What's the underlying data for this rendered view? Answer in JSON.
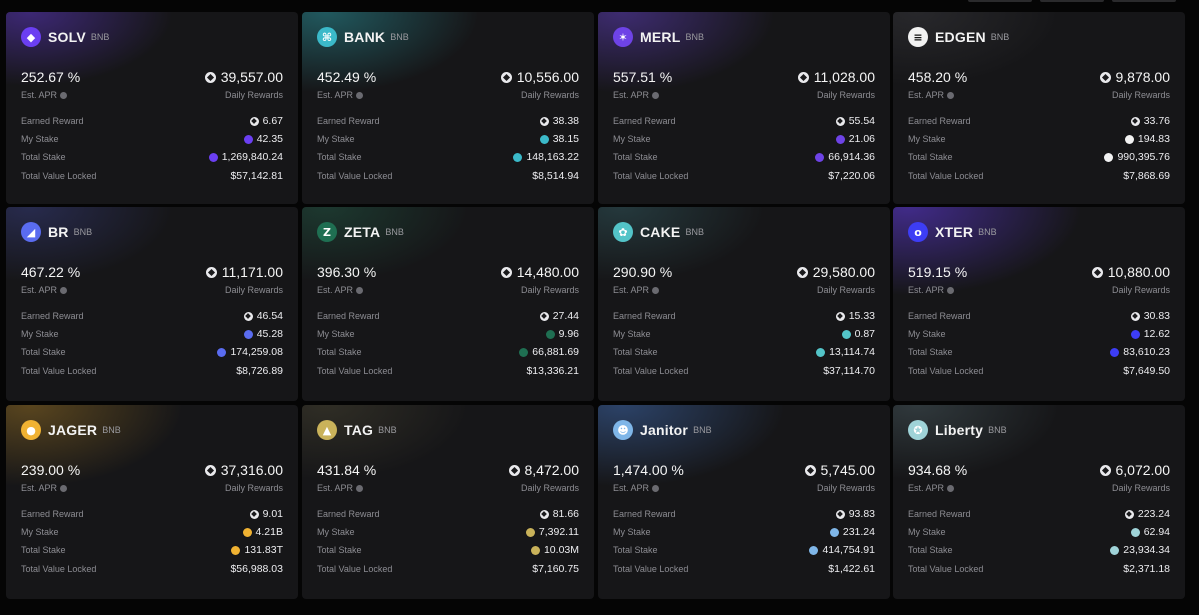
{
  "labels": {
    "est_apr": "Est. APR",
    "daily_rewards": "Daily Rewards",
    "earned_reward": "Earned Reward",
    "my_stake": "My Stake",
    "total_stake": "Total Stake",
    "tvl": "Total Value Locked"
  },
  "pools": [
    {
      "name": "SOLV",
      "chain": "BNB",
      "icon": "solv-logo-icon",
      "color": "#6b3ff2",
      "apr": "252.67 %",
      "daily": "39,557.00",
      "earned": "6.67",
      "my_stake": "42.35",
      "total_stake": "1,269,840.24",
      "tvl": "$57,142.81"
    },
    {
      "name": "BANK",
      "chain": "BNB",
      "icon": "bank-logo-icon",
      "color": "#3bb9c9",
      "apr": "452.49 %",
      "daily": "10,556.00",
      "earned": "38.38",
      "my_stake": "38.15",
      "total_stake": "148,163.22",
      "tvl": "$8,514.94"
    },
    {
      "name": "MERL",
      "chain": "BNB",
      "icon": "merl-logo-icon",
      "color": "#6e43e6",
      "apr": "557.51 %",
      "daily": "11,028.00",
      "earned": "55.54",
      "my_stake": "21.06",
      "total_stake": "66,914.36",
      "tvl": "$7,220.06"
    },
    {
      "name": "EDGEN",
      "chain": "BNB",
      "icon": "edgen-logo-icon",
      "color": "#f2f2f2",
      "apr": "458.20 %",
      "daily": "9,878.00",
      "earned": "33.76",
      "my_stake": "194.83",
      "total_stake": "990,395.76",
      "tvl": "$7,868.69"
    },
    {
      "name": "BR",
      "chain": "BNB",
      "icon": "br-logo-icon",
      "color": "#5a6cf0",
      "apr": "467.22 %",
      "daily": "11,171.00",
      "earned": "46.54",
      "my_stake": "45.28",
      "total_stake": "174,259.08",
      "tvl": "$8,726.89"
    },
    {
      "name": "ZETA",
      "chain": "BNB",
      "icon": "zeta-logo-icon",
      "color": "#1f6f52",
      "apr": "396.30 %",
      "daily": "14,480.00",
      "earned": "27.44",
      "my_stake": "9.96",
      "total_stake": "66,881.69",
      "tvl": "$13,336.21"
    },
    {
      "name": "CAKE",
      "chain": "BNB",
      "icon": "cake-logo-icon",
      "color": "#53c4c8",
      "apr": "290.90 %",
      "daily": "29,580.00",
      "earned": "15.33",
      "my_stake": "0.87",
      "total_stake": "13,114.74",
      "tvl": "$37,114.70"
    },
    {
      "name": "XTER",
      "chain": "BNB",
      "icon": "xter-logo-icon",
      "color": "#3d3df5",
      "apr": "519.15 %",
      "daily": "10,880.00",
      "earned": "30.83",
      "my_stake": "12.62",
      "total_stake": "83,610.23",
      "tvl": "$7,649.50"
    },
    {
      "name": "JAGER",
      "chain": "BNB",
      "icon": "jager-logo-icon",
      "color": "#f0b232",
      "apr": "239.00 %",
      "daily": "37,316.00",
      "earned": "9.01",
      "my_stake": "4.21B",
      "total_stake": "131.83T",
      "tvl": "$56,988.03"
    },
    {
      "name": "TAG",
      "chain": "BNB",
      "icon": "tag-logo-icon",
      "color": "#c9b25a",
      "apr": "431.84 %",
      "daily": "8,472.00",
      "earned": "81.66",
      "my_stake": "7,392.11",
      "total_stake": "10.03M",
      "tvl": "$7,160.75"
    },
    {
      "name": "Janitor",
      "chain": "BNB",
      "icon": "janitor-logo-icon",
      "color": "#7fb6e8",
      "apr": "1,474.00 %",
      "daily": "5,745.00",
      "earned": "93.83",
      "my_stake": "231.24",
      "total_stake": "414,754.91",
      "tvl": "$1,422.61"
    },
    {
      "name": "Liberty",
      "chain": "BNB",
      "icon": "liberty-logo-icon",
      "color": "#9fd3d8",
      "apr": "934.68 %",
      "daily": "6,072.00",
      "earned": "223.24",
      "my_stake": "62.94",
      "total_stake": "23,934.34",
      "tvl": "$2,371.18"
    }
  ]
}
